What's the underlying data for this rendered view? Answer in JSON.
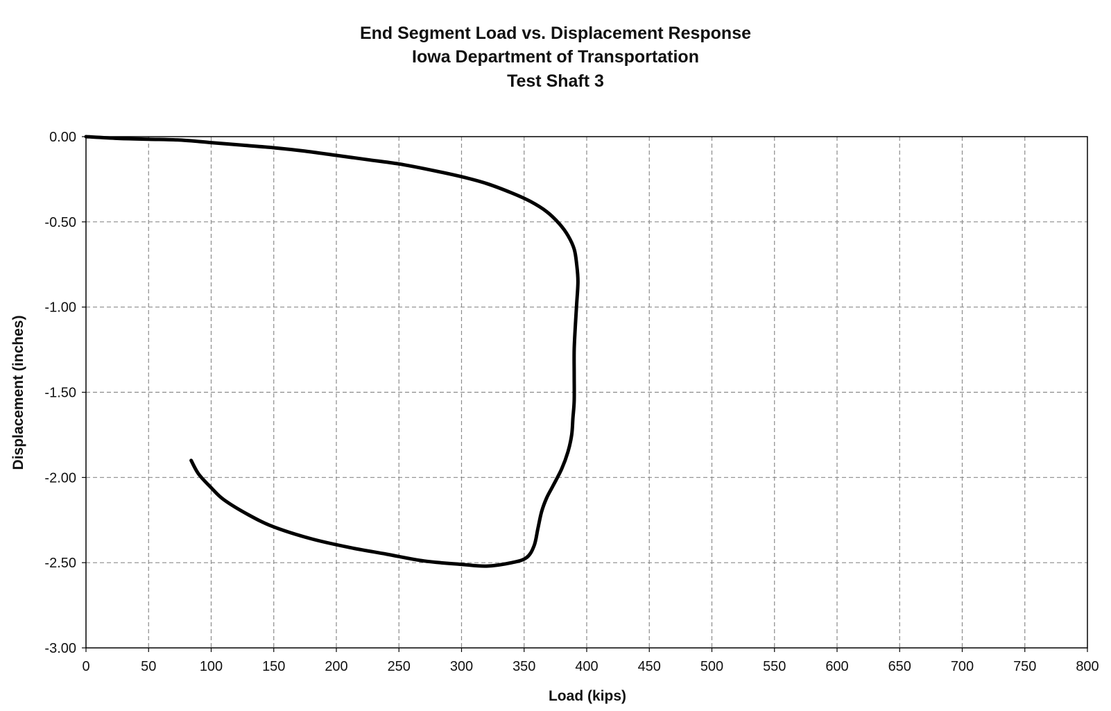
{
  "chart_data": {
    "type": "line",
    "title": [
      "End Segment Load vs. Displacement Response",
      "Iowa Department of Transportation",
      "Test Shaft 3"
    ],
    "xlabel": "Load (kips)",
    "ylabel": "Displacement (inches)",
    "xlim": [
      0,
      800
    ],
    "ylim": [
      -3.0,
      0.0
    ],
    "x_ticks": [
      "0",
      "50",
      "100",
      "150",
      "200",
      "250",
      "300",
      "350",
      "400",
      "450",
      "500",
      "550",
      "600",
      "650",
      "700",
      "750",
      "800"
    ],
    "y_ticks": [
      "0.00",
      "-0.50",
      "-1.00",
      "-1.50",
      "-2.00",
      "-2.50",
      "-3.00"
    ],
    "grid": true,
    "grid_style": "dashed",
    "line_color": "#000000",
    "series": [
      {
        "x": [
          0,
          25,
          50,
          75,
          100,
          125,
          150,
          175,
          200,
          225,
          250,
          275,
          300,
          320,
          340,
          355,
          368,
          378,
          385,
          390,
          392,
          393,
          392,
          391,
          390,
          390,
          390,
          389,
          388,
          385,
          380,
          373,
          368,
          364,
          361,
          358,
          352,
          340,
          320,
          300,
          270,
          240,
          210,
          180,
          150,
          130,
          110,
          100,
          90,
          84
        ],
        "y": [
          0.0,
          -0.01,
          -0.015,
          -0.02,
          -0.035,
          -0.05,
          -0.065,
          -0.085,
          -0.11,
          -0.135,
          -0.16,
          -0.195,
          -0.235,
          -0.275,
          -0.33,
          -0.38,
          -0.44,
          -0.51,
          -0.58,
          -0.66,
          -0.75,
          -0.85,
          -0.98,
          -1.1,
          -1.25,
          -1.4,
          -1.55,
          -1.65,
          -1.75,
          -1.85,
          -1.95,
          -2.05,
          -2.12,
          -2.2,
          -2.3,
          -2.4,
          -2.47,
          -2.5,
          -2.52,
          -2.51,
          -2.49,
          -2.45,
          -2.41,
          -2.36,
          -2.29,
          -2.22,
          -2.13,
          -2.06,
          -1.98,
          -1.9
        ]
      }
    ]
  }
}
